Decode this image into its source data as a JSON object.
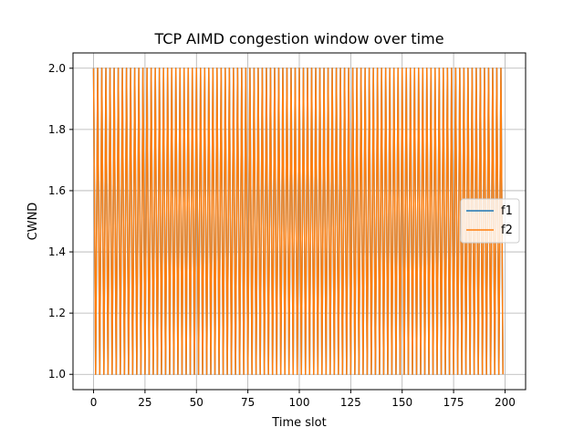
{
  "chart_data": {
    "type": "line",
    "title": "TCP AIMD congestion window over time",
    "xlabel": "Time slot",
    "ylabel": "CWND",
    "xlim": [
      -10,
      210
    ],
    "ylim": [
      0.95,
      2.05
    ],
    "xticks": [
      0,
      25,
      50,
      75,
      100,
      125,
      150,
      175,
      200
    ],
    "yticks": [
      1.0,
      1.2,
      1.4,
      1.6,
      1.8,
      2.0
    ],
    "grid": true,
    "legend_position": "center-right",
    "x": {
      "start": 0,
      "end": 199,
      "step": 1
    },
    "series": [
      {
        "name": "f1",
        "color": "#1f77b4",
        "pattern": [
          2.0,
          1.0
        ],
        "comment_free": true
      },
      {
        "name": "f2",
        "color": "#ff7f0e",
        "pattern": [
          2.0,
          1.0
        ]
      }
    ]
  }
}
